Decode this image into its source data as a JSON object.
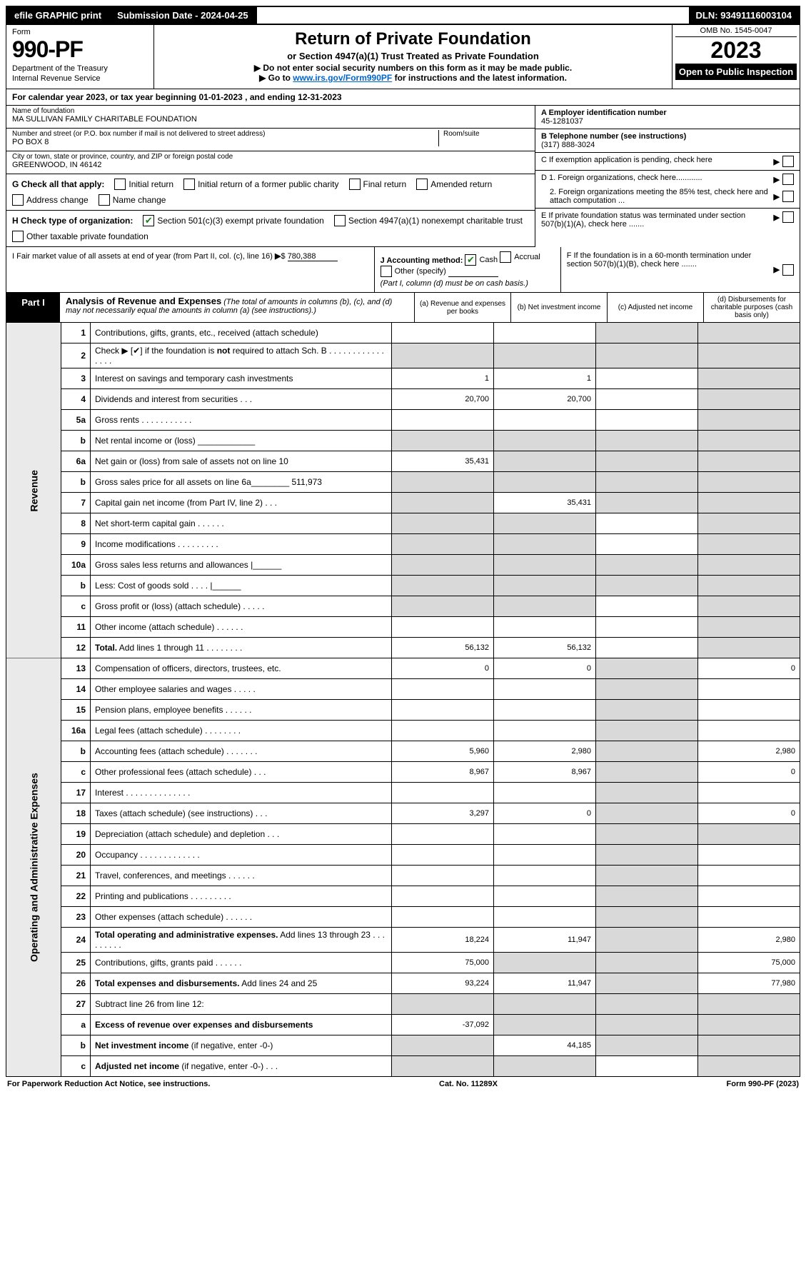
{
  "topbar": {
    "efile": "efile GRAPHIC print",
    "submission_label": "Submission Date - 2024-04-25",
    "dln": "DLN: 93491116003104"
  },
  "header": {
    "form_label": "Form",
    "form_num": "990-PF",
    "dept": "Department of the Treasury",
    "irs": "Internal Revenue Service",
    "title": "Return of Private Foundation",
    "subtitle": "or Section 4947(a)(1) Trust Treated as Private Foundation",
    "instr1": "▶ Do not enter social security numbers on this form as it may be made public.",
    "instr2_pre": "▶ Go to ",
    "instr2_link": "www.irs.gov/Form990PF",
    "instr2_post": " for instructions and the latest information.",
    "omb": "OMB No. 1545-0047",
    "year": "2023",
    "open": "Open to Public Inspection"
  },
  "cal": "For calendar year 2023, or tax year beginning 01-01-2023             , and ending 12-31-2023",
  "info": {
    "name_lbl": "Name of foundation",
    "name": "MA SULLIVAN FAMILY CHARITABLE FOUNDATION",
    "addr_lbl": "Number and street (or P.O. box number if mail is not delivered to street address)",
    "addr": "PO BOX 8",
    "room_lbl": "Room/suite",
    "city_lbl": "City or town, state or province, country, and ZIP or foreign postal code",
    "city": "GREENWOOD, IN  46142",
    "ein_lbl": "A Employer identification number",
    "ein": "45-1281037",
    "phone_lbl": "B Telephone number (see instructions)",
    "phone": "(317) 888-3024",
    "c": "C If exemption application is pending, check here",
    "d1": "D 1. Foreign organizations, check here............",
    "d2": "2. Foreign organizations meeting the 85% test, check here and attach computation ...",
    "e": "E  If private foundation status was terminated under section 507(b)(1)(A), check here .......",
    "f": "F  If the foundation is in a 60-month termination under section 507(b)(1)(B), check here .......",
    "g_lbl": "G Check all that apply:",
    "g_opts": [
      "Initial return",
      "Initial return of a former public charity",
      "Final return",
      "Amended return",
      "Address change",
      "Name change"
    ],
    "h_lbl": "H Check type of organization:",
    "h_opts": [
      "Section 501(c)(3) exempt private foundation",
      "Section 4947(a)(1) nonexempt charitable trust",
      "Other taxable private foundation"
    ],
    "i_lbl": "I Fair market value of all assets at end of year (from Part II, col. (c), line 16)",
    "i_val": "780,388",
    "j_lbl": "J Accounting method:",
    "j_opts": [
      "Cash",
      "Accrual",
      "Other (specify)"
    ],
    "j_note": "(Part I, column (d) must be on cash basis.)"
  },
  "part1": {
    "label": "Part I",
    "title": "Analysis of Revenue and Expenses",
    "note": "(The total of amounts in columns (b), (c), and (d) may not necessarily equal the amounts in column (a) (see instructions).)",
    "cols": {
      "a": "(a)   Revenue and expenses per books",
      "b": "(b)   Net investment income",
      "c": "(c)   Adjusted net income",
      "d": "(d)   Disbursements for charitable purposes (cash basis only)"
    }
  },
  "side": {
    "rev": "Revenue",
    "exp": "Operating and Administrative Expenses"
  },
  "rows": [
    {
      "n": "1",
      "d": "Contributions, gifts, grants, etc., received (attach schedule)",
      "a": "",
      "b": "",
      "c": "s",
      "ds": "s"
    },
    {
      "n": "2",
      "d": "Check ▶ [✔] if the foundation is <b>not</b> required to attach Sch. B  .  .  .  .  .  .  .  .  .  .  .  .  .  .  .  .",
      "a": "s",
      "b": "s",
      "c": "s",
      "ds": "s"
    },
    {
      "n": "3",
      "d": "Interest on savings and temporary cash investments",
      "a": "1",
      "b": "1",
      "c": "",
      "ds": "s"
    },
    {
      "n": "4",
      "d": "Dividends and interest from securities   .   .   .",
      "a": "20,700",
      "b": "20,700",
      "c": "",
      "ds": "s"
    },
    {
      "n": "5a",
      "d": "Gross rents   .   .   .   .   .   .   .   .   .   .   .",
      "a": "",
      "b": "",
      "c": "",
      "ds": "s"
    },
    {
      "n": "b",
      "d": "Net rental income or (loss)  ____________",
      "a": "s",
      "b": "s",
      "c": "s",
      "ds": "s"
    },
    {
      "n": "6a",
      "d": "Net gain or (loss) from sale of assets not on line 10",
      "a": "35,431",
      "b": "s",
      "c": "s",
      "ds": "s"
    },
    {
      "n": "b",
      "d": "Gross sales price for all assets on line 6a________  511,973",
      "a": "s",
      "b": "s",
      "c": "s",
      "ds": "s"
    },
    {
      "n": "7",
      "d": "Capital gain net income (from Part IV, line 2)   .   .   .",
      "a": "s",
      "b": "35,431",
      "c": "s",
      "ds": "s"
    },
    {
      "n": "8",
      "d": "Net short-term capital gain   .   .   .   .   .   .",
      "a": "s",
      "b": "s",
      "c": "",
      "ds": "s"
    },
    {
      "n": "9",
      "d": "Income modifications  .   .   .   .   .   .   .   .   .",
      "a": "s",
      "b": "s",
      "c": "",
      "ds": "s"
    },
    {
      "n": "10a",
      "d": "Gross sales less returns and allowances  |______",
      "a": "s",
      "b": "s",
      "c": "s",
      "ds": "s"
    },
    {
      "n": "b",
      "d": "Less: Cost of goods sold    .   .   .   .   |______",
      "a": "s",
      "b": "s",
      "c": "s",
      "ds": "s"
    },
    {
      "n": "c",
      "d": "Gross profit or (loss) (attach schedule)   .   .   .   .   .",
      "a": "s",
      "b": "s",
      "c": "",
      "ds": "s"
    },
    {
      "n": "11",
      "d": "Other income (attach schedule)   .   .   .   .   .   .",
      "a": "",
      "b": "",
      "c": "",
      "ds": "s"
    },
    {
      "n": "12",
      "d": "<b>Total.</b> Add lines 1 through 11   .   .   .   .   .   .   .   .",
      "a": "56,132",
      "b": "56,132",
      "c": "",
      "ds": "s"
    },
    {
      "n": "13",
      "d": "Compensation of officers, directors, trustees, etc.",
      "a": "0",
      "b": "0",
      "c": "s",
      "ds": "0"
    },
    {
      "n": "14",
      "d": "Other employee salaries and wages   .   .   .   .   .",
      "a": "",
      "b": "",
      "c": "s",
      "ds": ""
    },
    {
      "n": "15",
      "d": "Pension plans, employee benefits  .   .   .   .   .   .",
      "a": "",
      "b": "",
      "c": "s",
      "ds": ""
    },
    {
      "n": "16a",
      "d": "Legal fees (attach schedule)  .   .   .   .   .   .   .   .",
      "a": "",
      "b": "",
      "c": "s",
      "ds": ""
    },
    {
      "n": "b",
      "d": "Accounting fees (attach schedule)  .   .   .   .   .   .   .",
      "a": "5,960",
      "b": "2,980",
      "c": "s",
      "ds": "2,980"
    },
    {
      "n": "c",
      "d": "Other professional fees (attach schedule)    .   .   .",
      "a": "8,967",
      "b": "8,967",
      "c": "s",
      "ds": "0"
    },
    {
      "n": "17",
      "d": "Interest  .   .   .   .   .   .   .   .   .   .   .   .   .   .",
      "a": "",
      "b": "",
      "c": "s",
      "ds": ""
    },
    {
      "n": "18",
      "d": "Taxes (attach schedule) (see instructions)    .   .   .",
      "a": "3,297",
      "b": "0",
      "c": "s",
      "ds": "0"
    },
    {
      "n": "19",
      "d": "Depreciation (attach schedule) and depletion   .   .   .",
      "a": "",
      "b": "",
      "c": "s",
      "ds": "s"
    },
    {
      "n": "20",
      "d": "Occupancy  .   .   .   .   .   .   .   .   .   .   .   .   .",
      "a": "",
      "b": "",
      "c": "s",
      "ds": ""
    },
    {
      "n": "21",
      "d": "Travel, conferences, and meetings  .   .   .   .   .   .",
      "a": "",
      "b": "",
      "c": "s",
      "ds": ""
    },
    {
      "n": "22",
      "d": "Printing and publications  .   .   .   .   .   .   .   .   .",
      "a": "",
      "b": "",
      "c": "s",
      "ds": ""
    },
    {
      "n": "23",
      "d": "Other expenses (attach schedule)  .   .   .   .   .   .",
      "a": "",
      "b": "",
      "c": "s",
      "ds": ""
    },
    {
      "n": "24",
      "d": "<b>Total operating and administrative expenses.</b> Add lines 13 through 23   .   .   .   .   .   .   .   .   .",
      "a": "18,224",
      "b": "11,947",
      "c": "s",
      "ds": "2,980"
    },
    {
      "n": "25",
      "d": "Contributions, gifts, grants paid    .   .   .   .   .   .",
      "a": "75,000",
      "b": "s",
      "c": "s",
      "ds": "75,000"
    },
    {
      "n": "26",
      "d": "<b>Total expenses and disbursements.</b> Add lines 24 and 25",
      "a": "93,224",
      "b": "11,947",
      "c": "s",
      "ds": "77,980"
    },
    {
      "n": "27",
      "d": "Subtract line 26 from line 12:",
      "a": "s",
      "b": "s",
      "c": "s",
      "ds": "s"
    },
    {
      "n": "a",
      "d": "<b>Excess of revenue over expenses and disbursements</b>",
      "a": "-37,092",
      "b": "s",
      "c": "s",
      "ds": "s"
    },
    {
      "n": "b",
      "d": "<b>Net investment income</b> (if negative, enter -0-)",
      "a": "s",
      "b": "44,185",
      "c": "s",
      "ds": "s"
    },
    {
      "n": "c",
      "d": "<b>Adjusted net income</b> (if negative, enter -0-)   .   .   .",
      "a": "s",
      "b": "s",
      "c": "",
      "ds": "s"
    }
  ],
  "footer": {
    "l": "For Paperwork Reduction Act Notice, see instructions.",
    "m": "Cat. No. 11289X",
    "r": "Form 990-PF (2023)"
  }
}
